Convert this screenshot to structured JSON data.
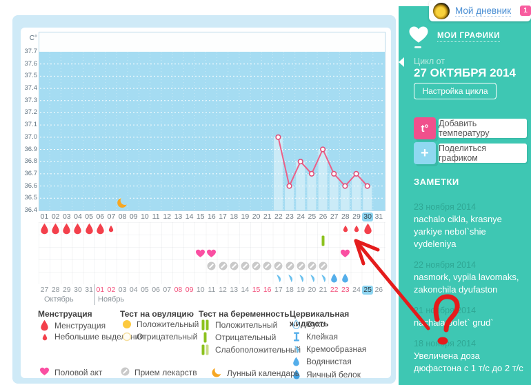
{
  "header": {
    "title": "Мой дневник",
    "badge": "1"
  },
  "sidebar": {
    "section_title": "МОИ ГРАФИКИ",
    "cycle": {
      "label": "Цикл от",
      "date": "27 ОКТЯБРЯ 2014",
      "settings_button": "Настройка цикла"
    },
    "actions": {
      "add_temperature": {
        "icon_label": "t°",
        "label": "Добавить температуру"
      },
      "share": {
        "icon_label": "+",
        "label": "Поделиться графиком"
      }
    },
    "notes_title": "ЗАМЕТКИ",
    "notes": [
      {
        "date": "23 ноября 2014",
        "text": "nachalo cikla, krasnye yarkiye nebol`shie vydeleniya"
      },
      {
        "date": "22 ноября 2014",
        "text": "nasmork, vypila lavomaks, zakonchila dyufaston"
      },
      {
        "date": "21 ноября 2014",
        "text": "nachala bolet` grud`"
      },
      {
        "date": "18 ноября 2014",
        "text": "Увеличена доза дюфастона с 1 т/с до 2 т/с"
      }
    ]
  },
  "chart_data": {
    "type": "line",
    "ylabel": "C°",
    "ylim": [
      36.4,
      37.7
    ],
    "yticks": [
      "37.7",
      "37.6",
      "37.5",
      "37.4",
      "37.3",
      "37.2",
      "37.1",
      "37.0",
      "36.9",
      "36.8",
      "36.7",
      "36.6",
      "36.5",
      "36.4"
    ],
    "x_days": 31,
    "grid": true,
    "series": [
      {
        "name": "temperature",
        "points": [
          {
            "day": 22,
            "value": 37.0
          },
          {
            "day": 23,
            "value": 36.6
          },
          {
            "day": 24,
            "value": 36.8
          },
          {
            "day": 25,
            "value": 36.7
          },
          {
            "day": 26,
            "value": 36.9
          },
          {
            "day": 27,
            "value": 36.7
          },
          {
            "day": 28,
            "value": 36.6
          },
          {
            "day": 29,
            "value": 36.7
          },
          {
            "day": 30,
            "value": 36.6
          }
        ]
      }
    ],
    "moon_days": [
      8
    ]
  },
  "day_rows": {
    "menstruation": [
      {
        "day": 1,
        "icon": "drop-large"
      },
      {
        "day": 2,
        "icon": "drop-large"
      },
      {
        "day": 3,
        "icon": "drop-large"
      },
      {
        "day": 4,
        "icon": "drop-large"
      },
      {
        "day": 5,
        "icon": "drop-large"
      },
      {
        "day": 6,
        "icon": "drop-large"
      },
      {
        "day": 7,
        "icon": "drop-small"
      },
      {
        "day": 28,
        "icon": "drop-small"
      },
      {
        "day": 29,
        "icon": "drop-small"
      },
      {
        "day": 30,
        "icon": "drop-large"
      }
    ],
    "tests": [
      {
        "day": 26,
        "icon": "pregnancy-negative"
      }
    ],
    "intimacy": [
      {
        "day": 15,
        "icon": "heart"
      },
      {
        "day": 16,
        "icon": "heart"
      },
      {
        "day": 28,
        "icon": "heart"
      }
    ],
    "pills": [
      {
        "day": 16,
        "icon": "pill"
      },
      {
        "day": 17,
        "icon": "pill"
      },
      {
        "day": 18,
        "icon": "pill"
      },
      {
        "day": 19,
        "icon": "pill"
      },
      {
        "day": 20,
        "icon": "pill"
      },
      {
        "day": 21,
        "icon": "pill"
      },
      {
        "day": 22,
        "icon": "pill"
      },
      {
        "day": 23,
        "icon": "pill"
      },
      {
        "day": 24,
        "icon": "pill"
      },
      {
        "day": 25,
        "icon": "pill"
      },
      {
        "day": 26,
        "icon": "pill"
      }
    ],
    "fluid": [
      {
        "day": 22,
        "icon": "fluid-creamy"
      },
      {
        "day": 23,
        "icon": "fluid-creamy"
      },
      {
        "day": 24,
        "icon": "fluid-creamy"
      },
      {
        "day": 25,
        "icon": "fluid-creamy"
      },
      {
        "day": 26,
        "icon": "fluid-creamy"
      },
      {
        "day": 27,
        "icon": "fluid-watery"
      },
      {
        "day": 28,
        "icon": "fluid-watery"
      }
    ]
  },
  "calendar": {
    "cycle_days": [
      "01",
      "02",
      "03",
      "04",
      "05",
      "06",
      "07",
      "08",
      "09",
      "10",
      "11",
      "12",
      "13",
      "14",
      "15",
      "16",
      "17",
      "18",
      "19",
      "20",
      "21",
      "22",
      "23",
      "24",
      "25",
      "26",
      "27",
      "28",
      "29",
      "30",
      "31"
    ],
    "highlight_cycle_day": "30",
    "dates": [
      {
        "label": "27"
      },
      {
        "label": "28"
      },
      {
        "label": "29"
      },
      {
        "label": "30"
      },
      {
        "label": "31"
      },
      {
        "label": "01",
        "red": true
      },
      {
        "label": "02",
        "red": true
      },
      {
        "label": "03"
      },
      {
        "label": "04"
      },
      {
        "label": "05"
      },
      {
        "label": "06"
      },
      {
        "label": "07"
      },
      {
        "label": "08",
        "red": true
      },
      {
        "label": "09",
        "red": true
      },
      {
        "label": "10"
      },
      {
        "label": "11"
      },
      {
        "label": "12"
      },
      {
        "label": "13"
      },
      {
        "label": "14"
      },
      {
        "label": "15",
        "red": true
      },
      {
        "label": "16",
        "red": true
      },
      {
        "label": "17"
      },
      {
        "label": "18"
      },
      {
        "label": "19"
      },
      {
        "label": "20"
      },
      {
        "label": "21"
      },
      {
        "label": "22",
        "red": true
      },
      {
        "label": "23",
        "red": true
      },
      {
        "label": "24"
      },
      {
        "label": "25",
        "today": true
      },
      {
        "label": "26"
      }
    ],
    "month_labels": [
      "Октябрь",
      "Ноябрь"
    ]
  },
  "legend": {
    "groups": [
      {
        "title": "Менструация",
        "items": [
          {
            "icon": "drop-large",
            "label": "Менструация"
          },
          {
            "icon": "drop-small",
            "label": "Небольшие выделения"
          }
        ]
      },
      {
        "title": "Тест на овуляцию",
        "items": [
          {
            "icon": "ovulation-positive",
            "label": "Положительный"
          },
          {
            "icon": "ovulation-negative",
            "label": "Отрицательный"
          }
        ]
      },
      {
        "title": "Тест на беременность",
        "items": [
          {
            "icon": "pregnancy-positive",
            "label": "Положительный"
          },
          {
            "icon": "pregnancy-negative",
            "label": "Отрицательный"
          },
          {
            "icon": "pregnancy-weak",
            "label": "Слабоположительный"
          }
        ]
      },
      {
        "title": "Цервикальная жидкость",
        "items": [
          {
            "icon": "fluid-dry",
            "label": "Сухо"
          },
          {
            "icon": "fluid-sticky",
            "label": "Клейкая"
          },
          {
            "icon": "fluid-creamy",
            "label": "Кремообразная"
          },
          {
            "icon": "fluid-watery",
            "label": "Водянистая"
          },
          {
            "icon": "fluid-eggwhite",
            "label": "Яичный белок"
          }
        ]
      }
    ],
    "extra": [
      {
        "icon": "heart",
        "label": "Половой акт"
      },
      {
        "icon": "pill",
        "label": "Прием лекарств"
      },
      {
        "icon": "moon",
        "label": "Лунный календарь"
      }
    ]
  },
  "colors": {
    "sidebar_teal": "#3ec7b3",
    "chart_area": "#a5dcf2",
    "temp_line": "#ec5f87",
    "marker_border": "#e14e77",
    "menstruation_red": "#f3404b",
    "heart_pink": "#fa4fa2",
    "test_green": "#8cc21f",
    "test_green_pale": "#c9dd85",
    "ovulation_yellow": "#fcc93e",
    "fluid_blue_light": "#6cc1ee",
    "fluid_blue_mid": "#54aeea",
    "fluid_blue_dark": "#3f9fe0",
    "pill_grey": "#c9c9c9",
    "moon_orange": "#f6a723",
    "highlight_blue": "#8ed5f1",
    "annotation_red": "#e41c1c"
  }
}
